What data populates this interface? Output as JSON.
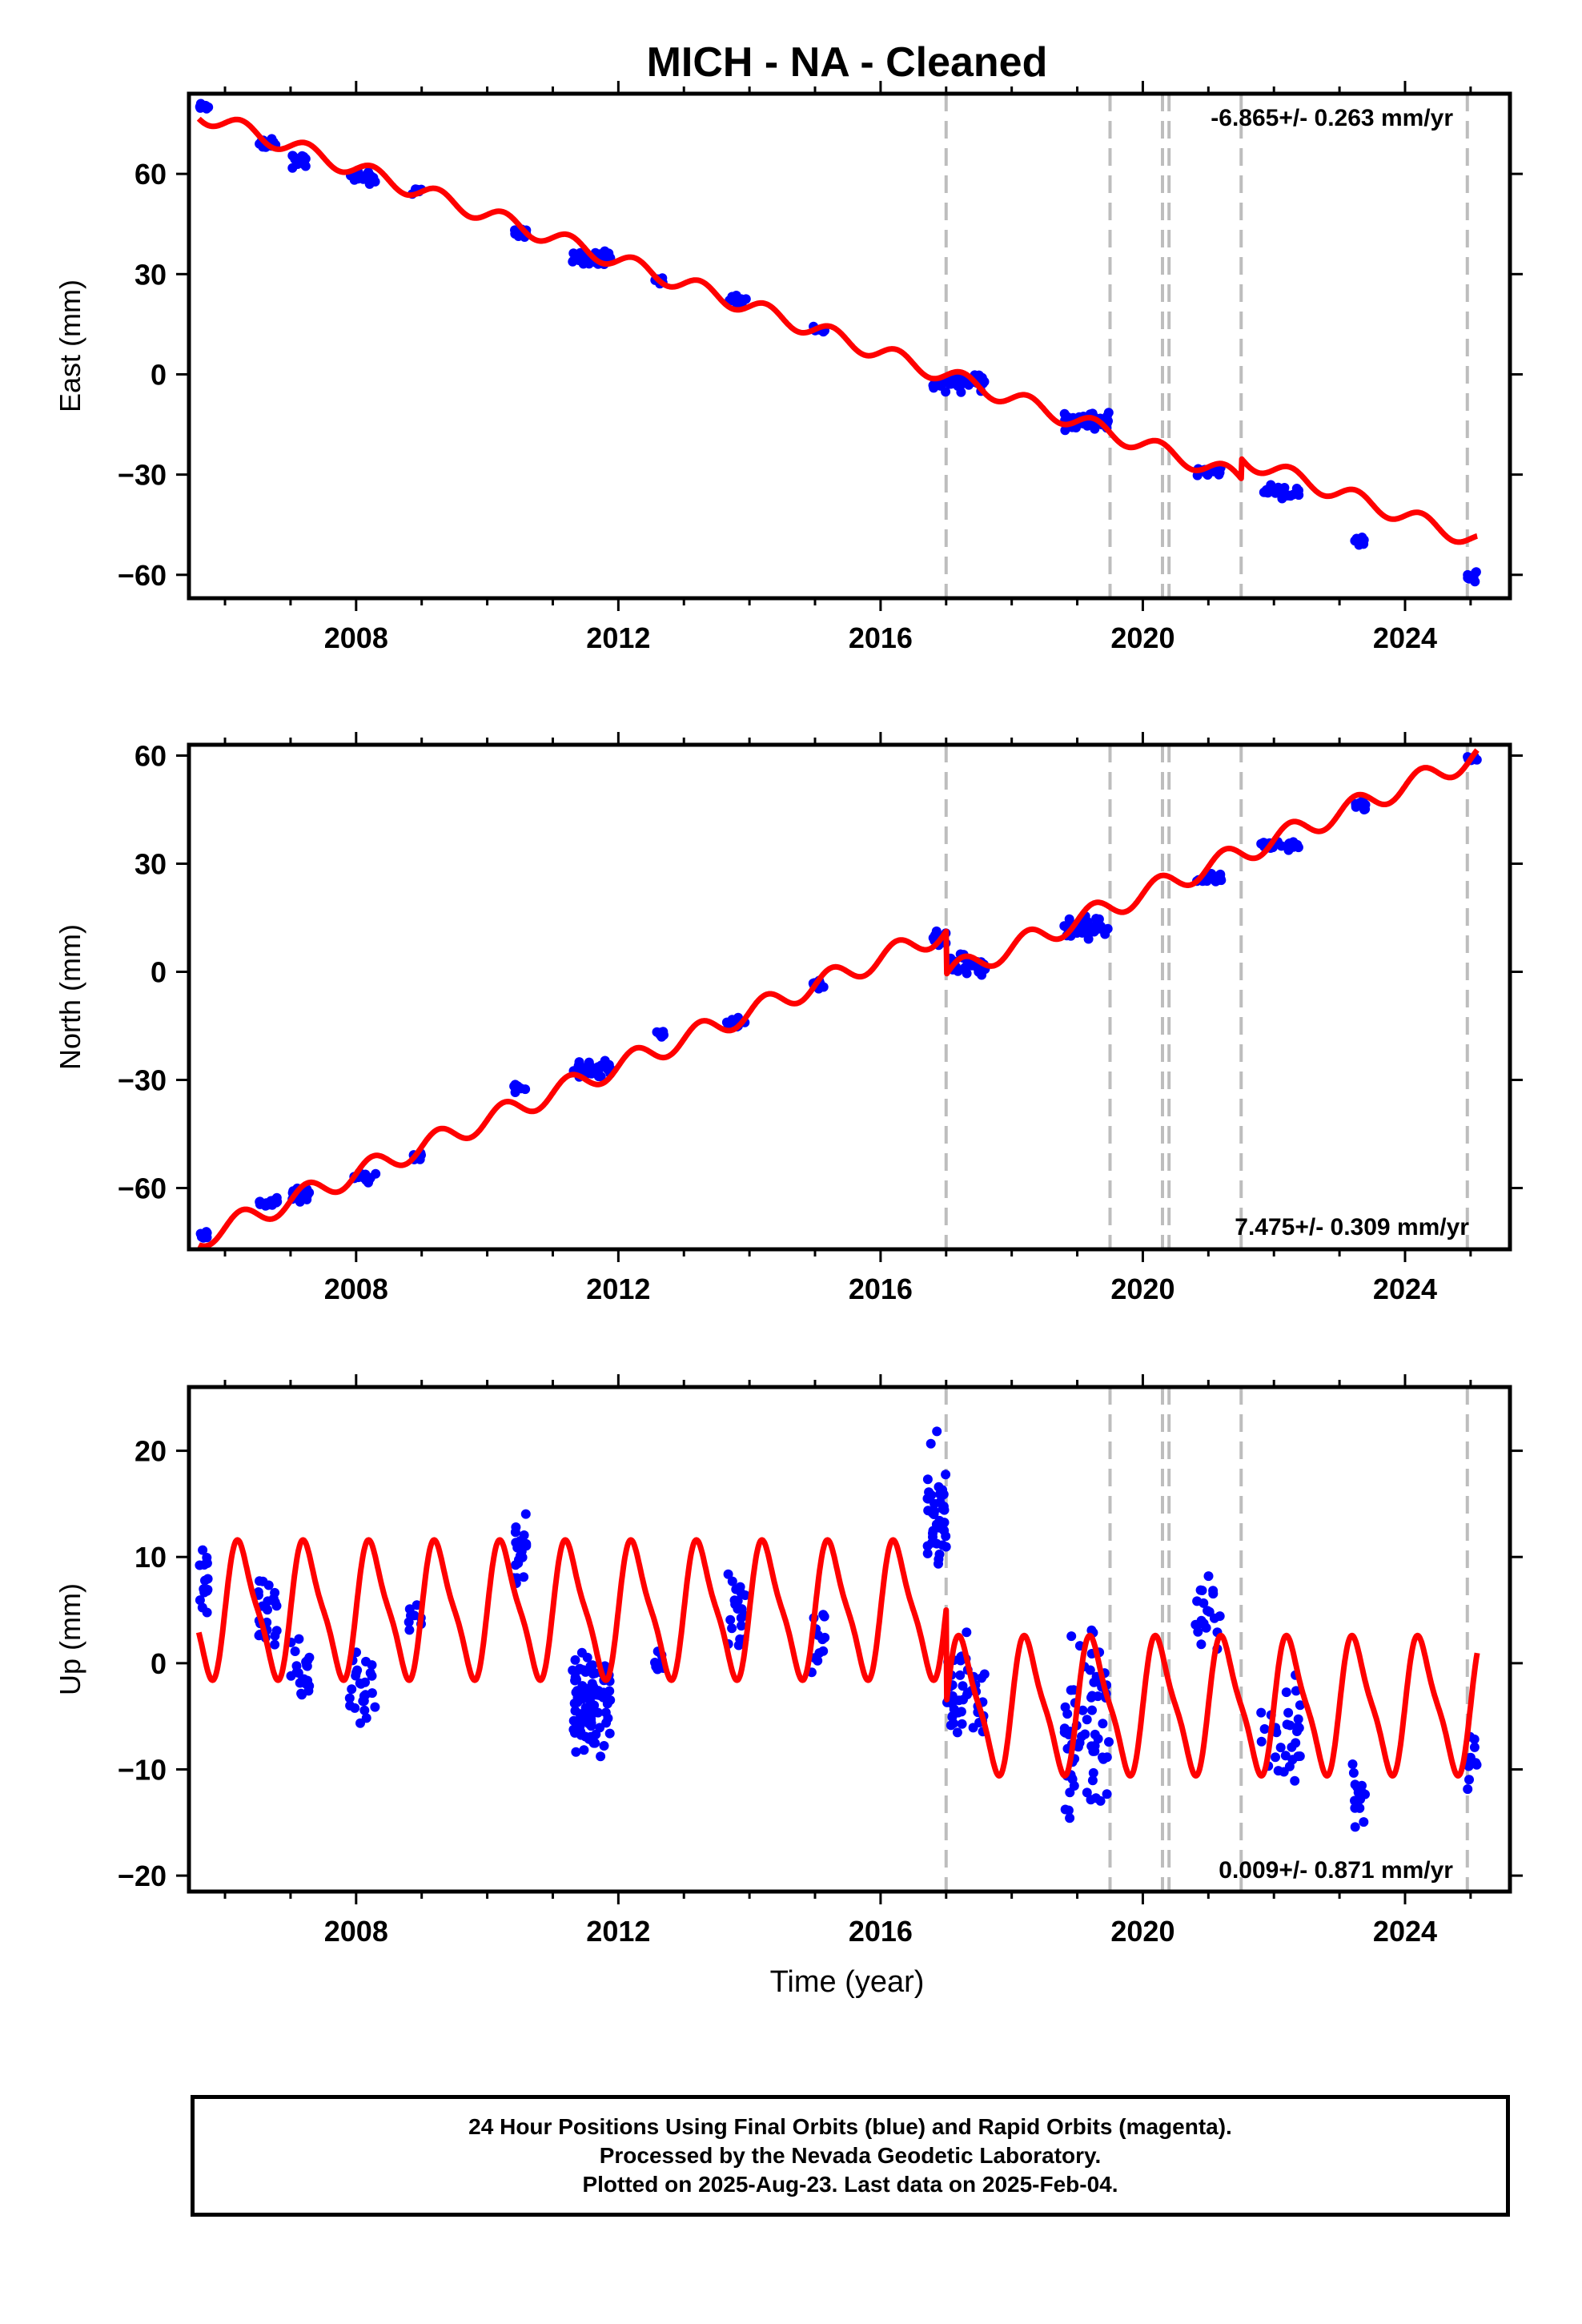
{
  "title": "MICH  - NA - Cleaned",
  "colors": {
    "final_orbits": "#0000ff",
    "model": "#ff0000",
    "offsets": "#bdbdbd",
    "frame": "#000000"
  },
  "xlabel": "Time (year)",
  "footer": {
    "line1": "24 Hour Positions Using Final Orbits (blue) and Rapid Orbits (magenta).",
    "line2": "Processed by the Nevada Geodetic Laboratory.",
    "line3": "Plotted on 2025-Aug-23. Last data on 2025-Feb-04."
  },
  "chart_data": [
    {
      "type": "scatter",
      "panel": "east",
      "ylabel": "East (mm)",
      "ylim": [
        -67,
        84
      ],
      "yticks": [
        -60,
        -30,
        0,
        30,
        60
      ],
      "xlim": [
        2005.45,
        2025.6
      ],
      "xticks": [
        2008,
        2012,
        2016,
        2020,
        2024
      ],
      "velocity_label": "-6.865+/- 0.263 mm/yr",
      "velocity_label_position": "top-right",
      "equipment_offsets": [
        2017.0,
        2019.5,
        2020.3,
        2020.4,
        2021.5,
        2024.95
      ],
      "model": {
        "rate": -6.865,
        "annual_amplitude": 2.5,
        "start": [
          2005.6,
          78
        ],
        "steps": [
          {
            "at": 2021.5,
            "size": 6
          }
        ]
      },
      "data_clusters": [
        {
          "x": [
            2005.6,
            2005.75
          ],
          "center": 80,
          "spread": 1.5,
          "n": 12
        },
        {
          "x": [
            2006.5,
            2006.8
          ],
          "center": 69,
          "spread": 2,
          "n": 20
        },
        {
          "x": [
            2007.0,
            2007.3
          ],
          "center": 64,
          "spread": 3,
          "n": 20
        },
        {
          "x": [
            2007.9,
            2008.3
          ],
          "center": 59,
          "spread": 3,
          "n": 20
        },
        {
          "x": [
            2008.8,
            2009.0
          ],
          "center": 55,
          "spread": 1.5,
          "n": 6
        },
        {
          "x": [
            2010.4,
            2010.6
          ],
          "center": 42,
          "spread": 2,
          "n": 10
        },
        {
          "x": [
            2011.3,
            2011.9
          ],
          "center": 35,
          "spread": 3,
          "n": 40
        },
        {
          "x": [
            2012.55,
            2012.7
          ],
          "center": 28,
          "spread": 1.5,
          "n": 6
        },
        {
          "x": [
            2013.65,
            2013.95
          ],
          "center": 22,
          "spread": 2,
          "n": 15
        },
        {
          "x": [
            2014.95,
            2015.15
          ],
          "center": 13,
          "spread": 2,
          "n": 10
        },
        {
          "x": [
            2016.8,
            2017.6
          ],
          "center": -2,
          "spread": 4,
          "n": 50
        },
        {
          "x": [
            2018.8,
            2019.5
          ],
          "center": -14,
          "spread": 4,
          "n": 45
        },
        {
          "x": [
            2020.8,
            2021.2
          ],
          "center": -29,
          "spread": 2,
          "n": 18
        },
        {
          "x": [
            2021.8,
            2022.4
          ],
          "center": -35,
          "spread": 2.5,
          "n": 25
        },
        {
          "x": [
            2023.2,
            2023.4
          ],
          "center": -50,
          "spread": 2,
          "n": 10
        },
        {
          "x": [
            2024.95,
            2025.1
          ],
          "center": -60,
          "spread": 2.5,
          "n": 8
        }
      ]
    },
    {
      "type": "scatter",
      "panel": "north",
      "ylabel": "North (mm)",
      "ylim": [
        -77,
        63
      ],
      "yticks": [
        -60,
        -30,
        0,
        30,
        60
      ],
      "xlim": [
        2005.45,
        2025.6
      ],
      "xticks": [
        2008,
        2012,
        2016,
        2020,
        2024
      ],
      "velocity_label": "7.475+/- 0.309 mm/yr",
      "velocity_label_position": "bottom-right",
      "equipment_offsets": [
        2017.0,
        2019.5,
        2020.3,
        2020.4,
        2021.5,
        2024.95
      ],
      "model": {
        "rate": 7.475,
        "annual_amplitude": 3,
        "start": [
          2005.6,
          -74
        ],
        "steps": [
          {
            "at": 2017.0,
            "size": -12
          }
        ]
      },
      "data_clusters": [
        {
          "x": [
            2005.6,
            2005.75
          ],
          "center": -73,
          "spread": 1.5,
          "n": 10
        },
        {
          "x": [
            2006.5,
            2006.8
          ],
          "center": -64,
          "spread": 2,
          "n": 18
        },
        {
          "x": [
            2007.0,
            2007.3
          ],
          "center": -62,
          "spread": 3,
          "n": 18
        },
        {
          "x": [
            2007.9,
            2008.3
          ],
          "center": -57,
          "spread": 2,
          "n": 15
        },
        {
          "x": [
            2008.8,
            2009.0
          ],
          "center": -51,
          "spread": 1.5,
          "n": 6
        },
        {
          "x": [
            2010.4,
            2010.6
          ],
          "center": -32,
          "spread": 2,
          "n": 10
        },
        {
          "x": [
            2011.3,
            2011.9
          ],
          "center": -27,
          "spread": 3,
          "n": 40
        },
        {
          "x": [
            2012.55,
            2012.7
          ],
          "center": -17,
          "spread": 1.5,
          "n": 6
        },
        {
          "x": [
            2013.65,
            2013.95
          ],
          "center": -14,
          "spread": 2,
          "n": 15
        },
        {
          "x": [
            2014.95,
            2015.15
          ],
          "center": -4,
          "spread": 2,
          "n": 10
        },
        {
          "x": [
            2016.8,
            2017.0
          ],
          "center": 9,
          "spread": 3,
          "n": 15
        },
        {
          "x": [
            2017.0,
            2017.6
          ],
          "center": 2,
          "spread": 4,
          "n": 35
        },
        {
          "x": [
            2018.8,
            2019.5
          ],
          "center": 12,
          "spread": 4,
          "n": 45
        },
        {
          "x": [
            2020.8,
            2021.2
          ],
          "center": 26,
          "spread": 2,
          "n": 18
        },
        {
          "x": [
            2021.8,
            2022.4
          ],
          "center": 35,
          "spread": 2,
          "n": 25
        },
        {
          "x": [
            2023.2,
            2023.4
          ],
          "center": 46,
          "spread": 2,
          "n": 10
        },
        {
          "x": [
            2024.95,
            2025.1
          ],
          "center": 59,
          "spread": 1.5,
          "n": 8
        }
      ]
    },
    {
      "type": "scatter",
      "panel": "up",
      "ylabel": "Up (mm)",
      "ylim": [
        -21.5,
        26
      ],
      "yticks": [
        -20,
        -10,
        0,
        10,
        20
      ],
      "xlim": [
        2005.45,
        2025.6
      ],
      "xticks": [
        2008,
        2012,
        2016,
        2020,
        2024
      ],
      "velocity_label": "0.009+/- 0.871 mm/yr",
      "velocity_label_position": "bottom-right",
      "equipment_offsets": [
        2017.0,
        2019.5,
        2020.3,
        2020.4,
        2021.5,
        2024.95
      ],
      "model": {
        "rate": 0.0,
        "annual_amplitude": 6,
        "semiannual_amplitude": 1.5,
        "start": [
          2005.6,
          5
        ],
        "steps": [
          {
            "at": 2017.0,
            "size": -9
          }
        ]
      },
      "data_clusters": [
        {
          "x": [
            2005.6,
            2005.75
          ],
          "center": 8,
          "spread": 6,
          "n": 14
        },
        {
          "x": [
            2006.5,
            2006.8
          ],
          "center": 4,
          "spread": 5,
          "n": 25
        },
        {
          "x": [
            2007.0,
            2007.3
          ],
          "center": -1,
          "spread": 5,
          "n": 25
        },
        {
          "x": [
            2007.9,
            2008.3
          ],
          "center": -3,
          "spread": 6,
          "n": 25
        },
        {
          "x": [
            2008.8,
            2009.0
          ],
          "center": 5,
          "spread": 4,
          "n": 8
        },
        {
          "x": [
            2010.4,
            2010.6
          ],
          "center": 10,
          "spread": 6,
          "n": 20
        },
        {
          "x": [
            2011.3,
            2011.9
          ],
          "center": -4,
          "spread": 7,
          "n": 90
        },
        {
          "x": [
            2012.55,
            2012.7
          ],
          "center": 0,
          "spread": 3,
          "n": 8
        },
        {
          "x": [
            2013.65,
            2013.95
          ],
          "center": 5,
          "spread": 6,
          "n": 20
        },
        {
          "x": [
            2014.95,
            2015.15
          ],
          "center": 2,
          "spread": 5,
          "n": 12
        },
        {
          "x": [
            2016.7,
            2017.0
          ],
          "center": 14,
          "spread": 9,
          "n": 40
        },
        {
          "x": [
            2017.0,
            2017.6
          ],
          "center": -3,
          "spread": 7,
          "n": 45
        },
        {
          "x": [
            2018.8,
            2019.5
          ],
          "center": -6,
          "spread": 12,
          "n": 70
        },
        {
          "x": [
            2020.8,
            2021.2
          ],
          "center": 5,
          "spread": 6,
          "n": 20
        },
        {
          "x": [
            2021.8,
            2022.4
          ],
          "center": -6,
          "spread": 8,
          "n": 30
        },
        {
          "x": [
            2023.2,
            2023.4
          ],
          "center": -12,
          "spread": 6,
          "n": 14
        },
        {
          "x": [
            2024.95,
            2025.1
          ],
          "center": -9,
          "spread": 7,
          "n": 10
        }
      ]
    }
  ]
}
